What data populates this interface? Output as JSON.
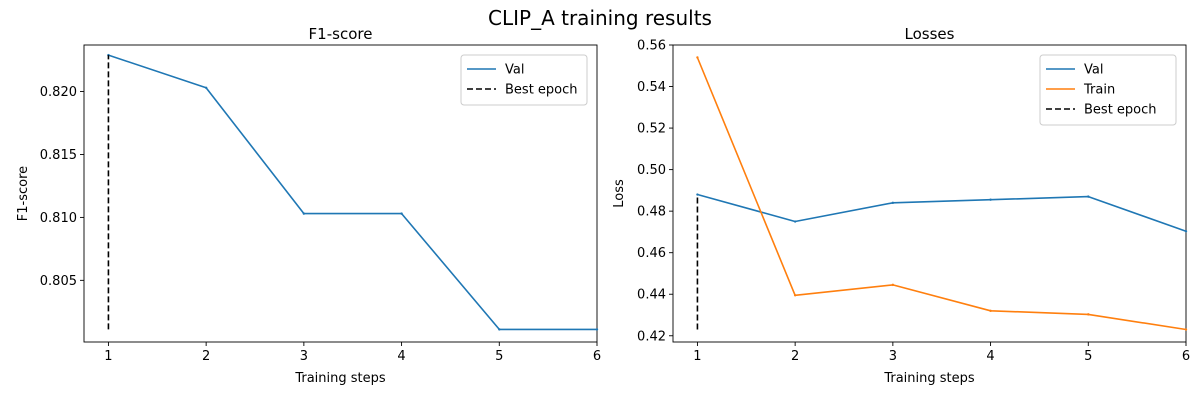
{
  "figure": {
    "title": "CLIP_A training results"
  },
  "colors": {
    "val": "#1f77b4",
    "train": "#ff7f0e",
    "best": "#000000"
  },
  "chart_data": [
    {
      "type": "line",
      "title": "F1-score",
      "xlabel": "Training steps",
      "ylabel": "F1-score",
      "x": [
        1,
        2,
        3,
        4,
        5,
        6
      ],
      "xticks": [
        "1",
        "2",
        "3",
        "4",
        "5",
        "6"
      ],
      "yticks": [
        "0.805",
        "0.810",
        "0.815",
        "0.820"
      ],
      "xlim": [
        0.75,
        6.0
      ],
      "ylim": [
        0.8001,
        0.8237
      ],
      "series": [
        {
          "name": "Val",
          "values": [
            0.8229,
            0.8203,
            0.8103,
            0.8103,
            0.8011,
            0.8011
          ]
        }
      ],
      "best_epoch": {
        "name": "Best epoch",
        "x": 1,
        "y_from": 0.8011,
        "y_to": 0.8229
      },
      "legend": "top-right",
      "grid": false
    },
    {
      "type": "line",
      "title": "Losses",
      "xlabel": "Training steps",
      "ylabel": "Loss",
      "x": [
        1,
        2,
        3,
        4,
        5,
        6
      ],
      "xticks": [
        "1",
        "2",
        "3",
        "4",
        "5",
        "6"
      ],
      "yticks": [
        "0.42",
        "0.44",
        "0.46",
        "0.48",
        "0.50",
        "0.52",
        "0.54",
        "0.56"
      ],
      "xlim": [
        0.75,
        6.0
      ],
      "ylim": [
        0.417,
        0.56
      ],
      "series": [
        {
          "name": "Val",
          "values": [
            0.488,
            0.475,
            0.484,
            0.4855,
            0.487,
            0.4703
          ]
        },
        {
          "name": "Train",
          "values": [
            0.554,
            0.4395,
            0.4445,
            0.432,
            0.4303,
            0.423
          ]
        }
      ],
      "best_epoch": {
        "name": "Best epoch",
        "x": 1,
        "y_from": 0.423,
        "y_to": 0.488
      },
      "legend": "top-right",
      "grid": false
    }
  ]
}
